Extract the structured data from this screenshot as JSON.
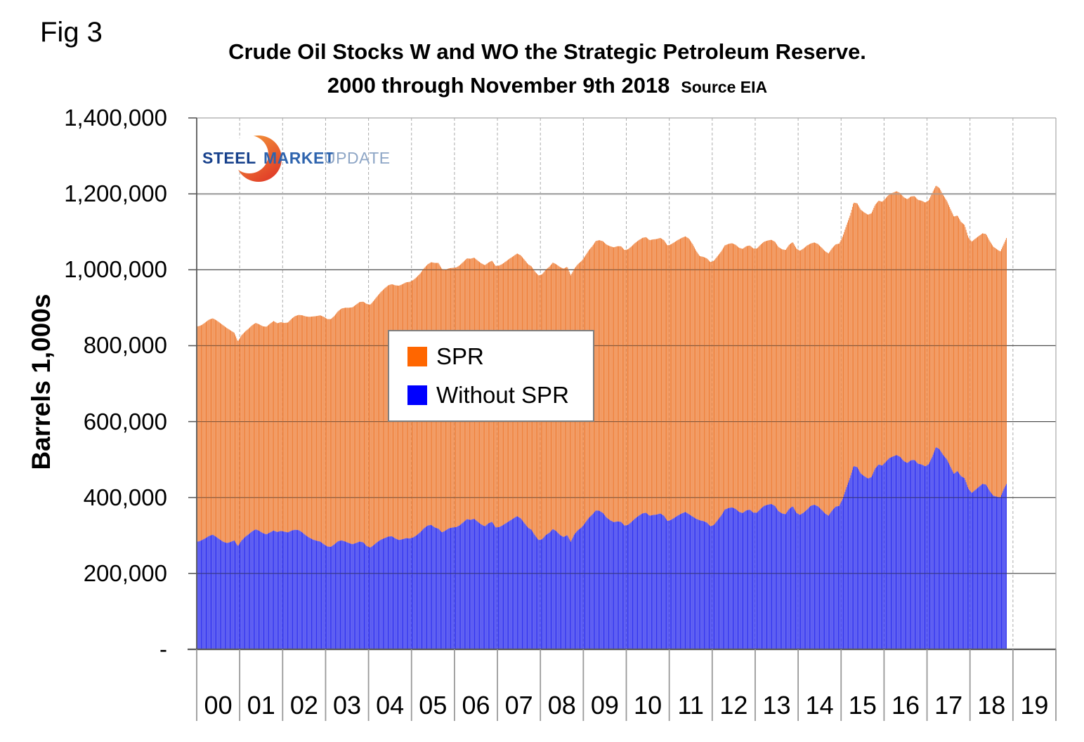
{
  "fig_label": "Fig 3",
  "title": {
    "line1": "Crude Oil Stocks W and WO the Strategic Petroleum Reserve.",
    "line2": "2000 through November 9th 2018",
    "source": "Source EIA"
  },
  "y_axis": {
    "title": "Barrels 1,000s",
    "ticks": [
      {
        "label": "1,400,000",
        "value": 1400000
      },
      {
        "label": "1,200,000",
        "value": 1200000
      },
      {
        "label": "1,000,000",
        "value": 1000000
      },
      {
        "label": "800,000",
        "value": 800000
      },
      {
        "label": "600,000",
        "value": 600000
      },
      {
        "label": "400,000",
        "value": 400000
      },
      {
        "label": "200,000",
        "value": 200000
      },
      {
        "label": "-",
        "value": 0
      }
    ]
  },
  "x_axis": {
    "labels": [
      "00",
      "01",
      "02",
      "03",
      "04",
      "05",
      "06",
      "07",
      "08",
      "09",
      "10",
      "11",
      "12",
      "13",
      "14",
      "15",
      "16",
      "17",
      "18",
      "19"
    ]
  },
  "legend": [
    {
      "label": "SPR",
      "color": "#FF6600"
    },
    {
      "label": "Without SPR",
      "color": "#0000FF"
    }
  ],
  "logo": {
    "word1": "STEEL",
    "word2": "MARKET",
    "word3": "UPDATE",
    "colors": {
      "word1": "#17418c",
      "word2": "#2e64ae",
      "word3": "#8ea6c6",
      "crescent_top": "#f6a23c",
      "crescent_bottom": "#e13d28"
    }
  },
  "chart_data": {
    "type": "bar",
    "subtype": "stacked-weekly-columns",
    "title": "Crude Oil Stocks W and WO the Strategic Petroleum Reserve. 2000 through November 9th 2018",
    "xlabel": "",
    "ylabel": "Barrels 1,000s",
    "unit": "thousand barrels",
    "ylim": [
      0,
      1400000
    ],
    "x_start": 2000.0,
    "x_end": 2018.857,
    "weekly_bar_count": 984,
    "legend_position": "center-left overlay",
    "grid": {
      "horizontal": true,
      "vertical_year_dashed": true
    },
    "series": [
      {
        "name": "Without SPR",
        "stack_order": 0,
        "bar_color": "#2a2cee",
        "monthly_values_by_year": {
          "2000": [
            284000,
            288000,
            293000,
            299000,
            302000,
            296000,
            289000,
            283000,
            280000,
            283000,
            287000,
            272000
          ],
          "2001": [
            286000,
            296000,
            303000,
            311000,
            316000,
            312000,
            306000,
            303000,
            308000,
            313000,
            309000,
            312000
          ],
          "2002": [
            310000,
            308000,
            313000,
            315000,
            314000,
            308000,
            300000,
            294000,
            289000,
            286000,
            284000,
            277000
          ],
          "2003": [
            271000,
            270000,
            277000,
            285000,
            287000,
            284000,
            280000,
            277000,
            280000,
            284000,
            282000,
            272000
          ],
          "2004": [
            268000,
            275000,
            283000,
            289000,
            293000,
            297000,
            298000,
            292000,
            288000,
            290000,
            293000,
            292000
          ],
          "2005": [
            295000,
            301000,
            309000,
            319000,
            326000,
            328000,
            321000,
            318000,
            308000,
            313000,
            319000,
            321000
          ],
          "2006": [
            322000,
            327000,
            335000,
            343000,
            341000,
            344000,
            336000,
            329000,
            324000,
            332000,
            336000,
            321000
          ],
          "2007": [
            322000,
            327000,
            333000,
            339000,
            345000,
            351000,
            345000,
            333000,
            321000,
            315000,
            300000,
            288000
          ],
          "2008": [
            290000,
            301000,
            307000,
            317000,
            311000,
            301000,
            296000,
            301000,
            283000,
            303000,
            314000,
            321000
          ],
          "2009": [
            333000,
            346000,
            355000,
            366000,
            365000,
            359000,
            347000,
            340000,
            335000,
            337000,
            336000,
            326000
          ],
          "2010": [
            328000,
            336000,
            345000,
            352000,
            358000,
            360000,
            352000,
            354000,
            355000,
            358000,
            352000,
            338000
          ],
          "2011": [
            341000,
            347000,
            353000,
            358000,
            362000,
            356000,
            350000,
            344000,
            340000,
            338000,
            334000,
            324000
          ],
          "2012": [
            328000,
            340000,
            352000,
            368000,
            372000,
            374000,
            370000,
            362000,
            359000,
            366000,
            368000,
            360000
          ],
          "2013": [
            360000,
            370000,
            378000,
            381000,
            383000,
            378000,
            364000,
            358000,
            356000,
            370000,
            377000,
            360000
          ],
          "2014": [
            354000,
            360000,
            368000,
            378000,
            381000,
            377000,
            368000,
            358000,
            352000,
            366000,
            376000,
            378000
          ],
          "2015": [
            398000,
            426000,
            452000,
            483000,
            480000,
            463000,
            456000,
            450000,
            454000,
            476000,
            487000,
            484000
          ],
          "2016": [
            494000,
            504000,
            508000,
            512000,
            507000,
            496000,
            491000,
            498000,
            499000,
            489000,
            487000,
            482000
          ],
          "2017": [
            488000,
            508000,
            533000,
            527000,
            512000,
            501000,
            482000,
            462000,
            470000,
            456000,
            451000,
            424000
          ],
          "2018": [
            412000,
            420000,
            428000,
            436000,
            434000,
            417000,
            405000,
            402000,
            400000,
            423000,
            442000
          ]
        }
      },
      {
        "name": "SPR",
        "stack_order": 1,
        "bar_color": "#ee7c34",
        "monthly_values_by_year": {
          "2000": [
            567000,
            567000,
            569000,
            570000,
            570000,
            571000,
            571000,
            570000,
            566000,
            557000,
            547000,
            539000
          ],
          "2001": [
            541000,
            541000,
            542000,
            543000,
            544000,
            544000,
            545000,
            547000,
            550000,
            552000,
            550000,
            550000
          ],
          "2002": [
            550000,
            553000,
            558000,
            563000,
            567000,
            572000,
            577000,
            582000,
            588000,
            592000,
            596000,
            599000
          ],
          "2003": [
            599000,
            600000,
            602000,
            606000,
            611000,
            616000,
            620000,
            624000,
            628000,
            631000,
            634000,
            638000
          ],
          "2004": [
            640000,
            644000,
            648000,
            653000,
            658000,
            662000,
            664000,
            667000,
            670000,
            672000,
            674000,
            676000
          ],
          "2005": [
            678000,
            680000,
            682000,
            685000,
            688000,
            692000,
            697000,
            700000,
            694000,
            687000,
            685000,
            684000
          ],
          "2006": [
            684000,
            685000,
            686000,
            687000,
            688000,
            688000,
            688000,
            688000,
            688000,
            687000,
            688000,
            689000
          ],
          "2007": [
            689000,
            689000,
            690000,
            691000,
            691000,
            692000,
            693000,
            694000,
            694000,
            694000,
            695000,
            697000
          ],
          "2008": [
            698000,
            699000,
            701000,
            702000,
            703000,
            706000,
            707000,
            707000,
            702000,
            700000,
            701000,
            702000
          ],
          "2009": [
            703000,
            705000,
            707000,
            710000,
            713000,
            716000,
            719000,
            722000,
            724000,
            725000,
            726000,
            726000
          ],
          "2010": [
            726000,
            726000,
            726000,
            726000,
            726000,
            726000,
            726000,
            726000,
            726000,
            726000,
            726000,
            726000
          ],
          "2011": [
            726000,
            726000,
            726000,
            726000,
            726000,
            726000,
            718000,
            706000,
            696000,
            696000,
            696000,
            696000
          ],
          "2012": [
            696000,
            696000,
            696000,
            696000,
            696000,
            696000,
            696000,
            696000,
            696000,
            696000,
            696000,
            696000
          ],
          "2013": [
            696000,
            696000,
            696000,
            696000,
            696000,
            696000,
            696000,
            696000,
            696000,
            696000,
            696000,
            696000
          ],
          "2014": [
            696000,
            696000,
            696000,
            691000,
            691000,
            691000,
            691000,
            691000,
            691000,
            691000,
            691000,
            691000
          ],
          "2015": [
            691000,
            691000,
            691000,
            694000,
            695000,
            695000,
            695000,
            695000,
            695000,
            695000,
            695000,
            695000
          ],
          "2016": [
            695000,
            695000,
            695000,
            695000,
            695000,
            695000,
            695000,
            695000,
            695000,
            695000,
            695000,
            695000
          ],
          "2017": [
            695000,
            695000,
            689000,
            688000,
            685000,
            681000,
            679000,
            678000,
            673000,
            670000,
            667000,
            662000
          ],
          "2018": [
            662000,
            662000,
            661000,
            660000,
            660000,
            659000,
            656000,
            652000,
            648000,
            646000,
            649000
          ]
        }
      }
    ],
    "notes": "Weekly stacked columns; SPR stacked on top of Without SPR. Values in thousand barrels, estimated monthly and interpolated weekly."
  },
  "colors": {
    "bar_without_spr": "#2a2cee",
    "bar_spr": "#ee7c34",
    "gridline_dark": "#3d3d3d",
    "gridline_1200k": "#a8a8a8",
    "year_dashed_line": "#ababab",
    "axis_line": "#595959"
  }
}
